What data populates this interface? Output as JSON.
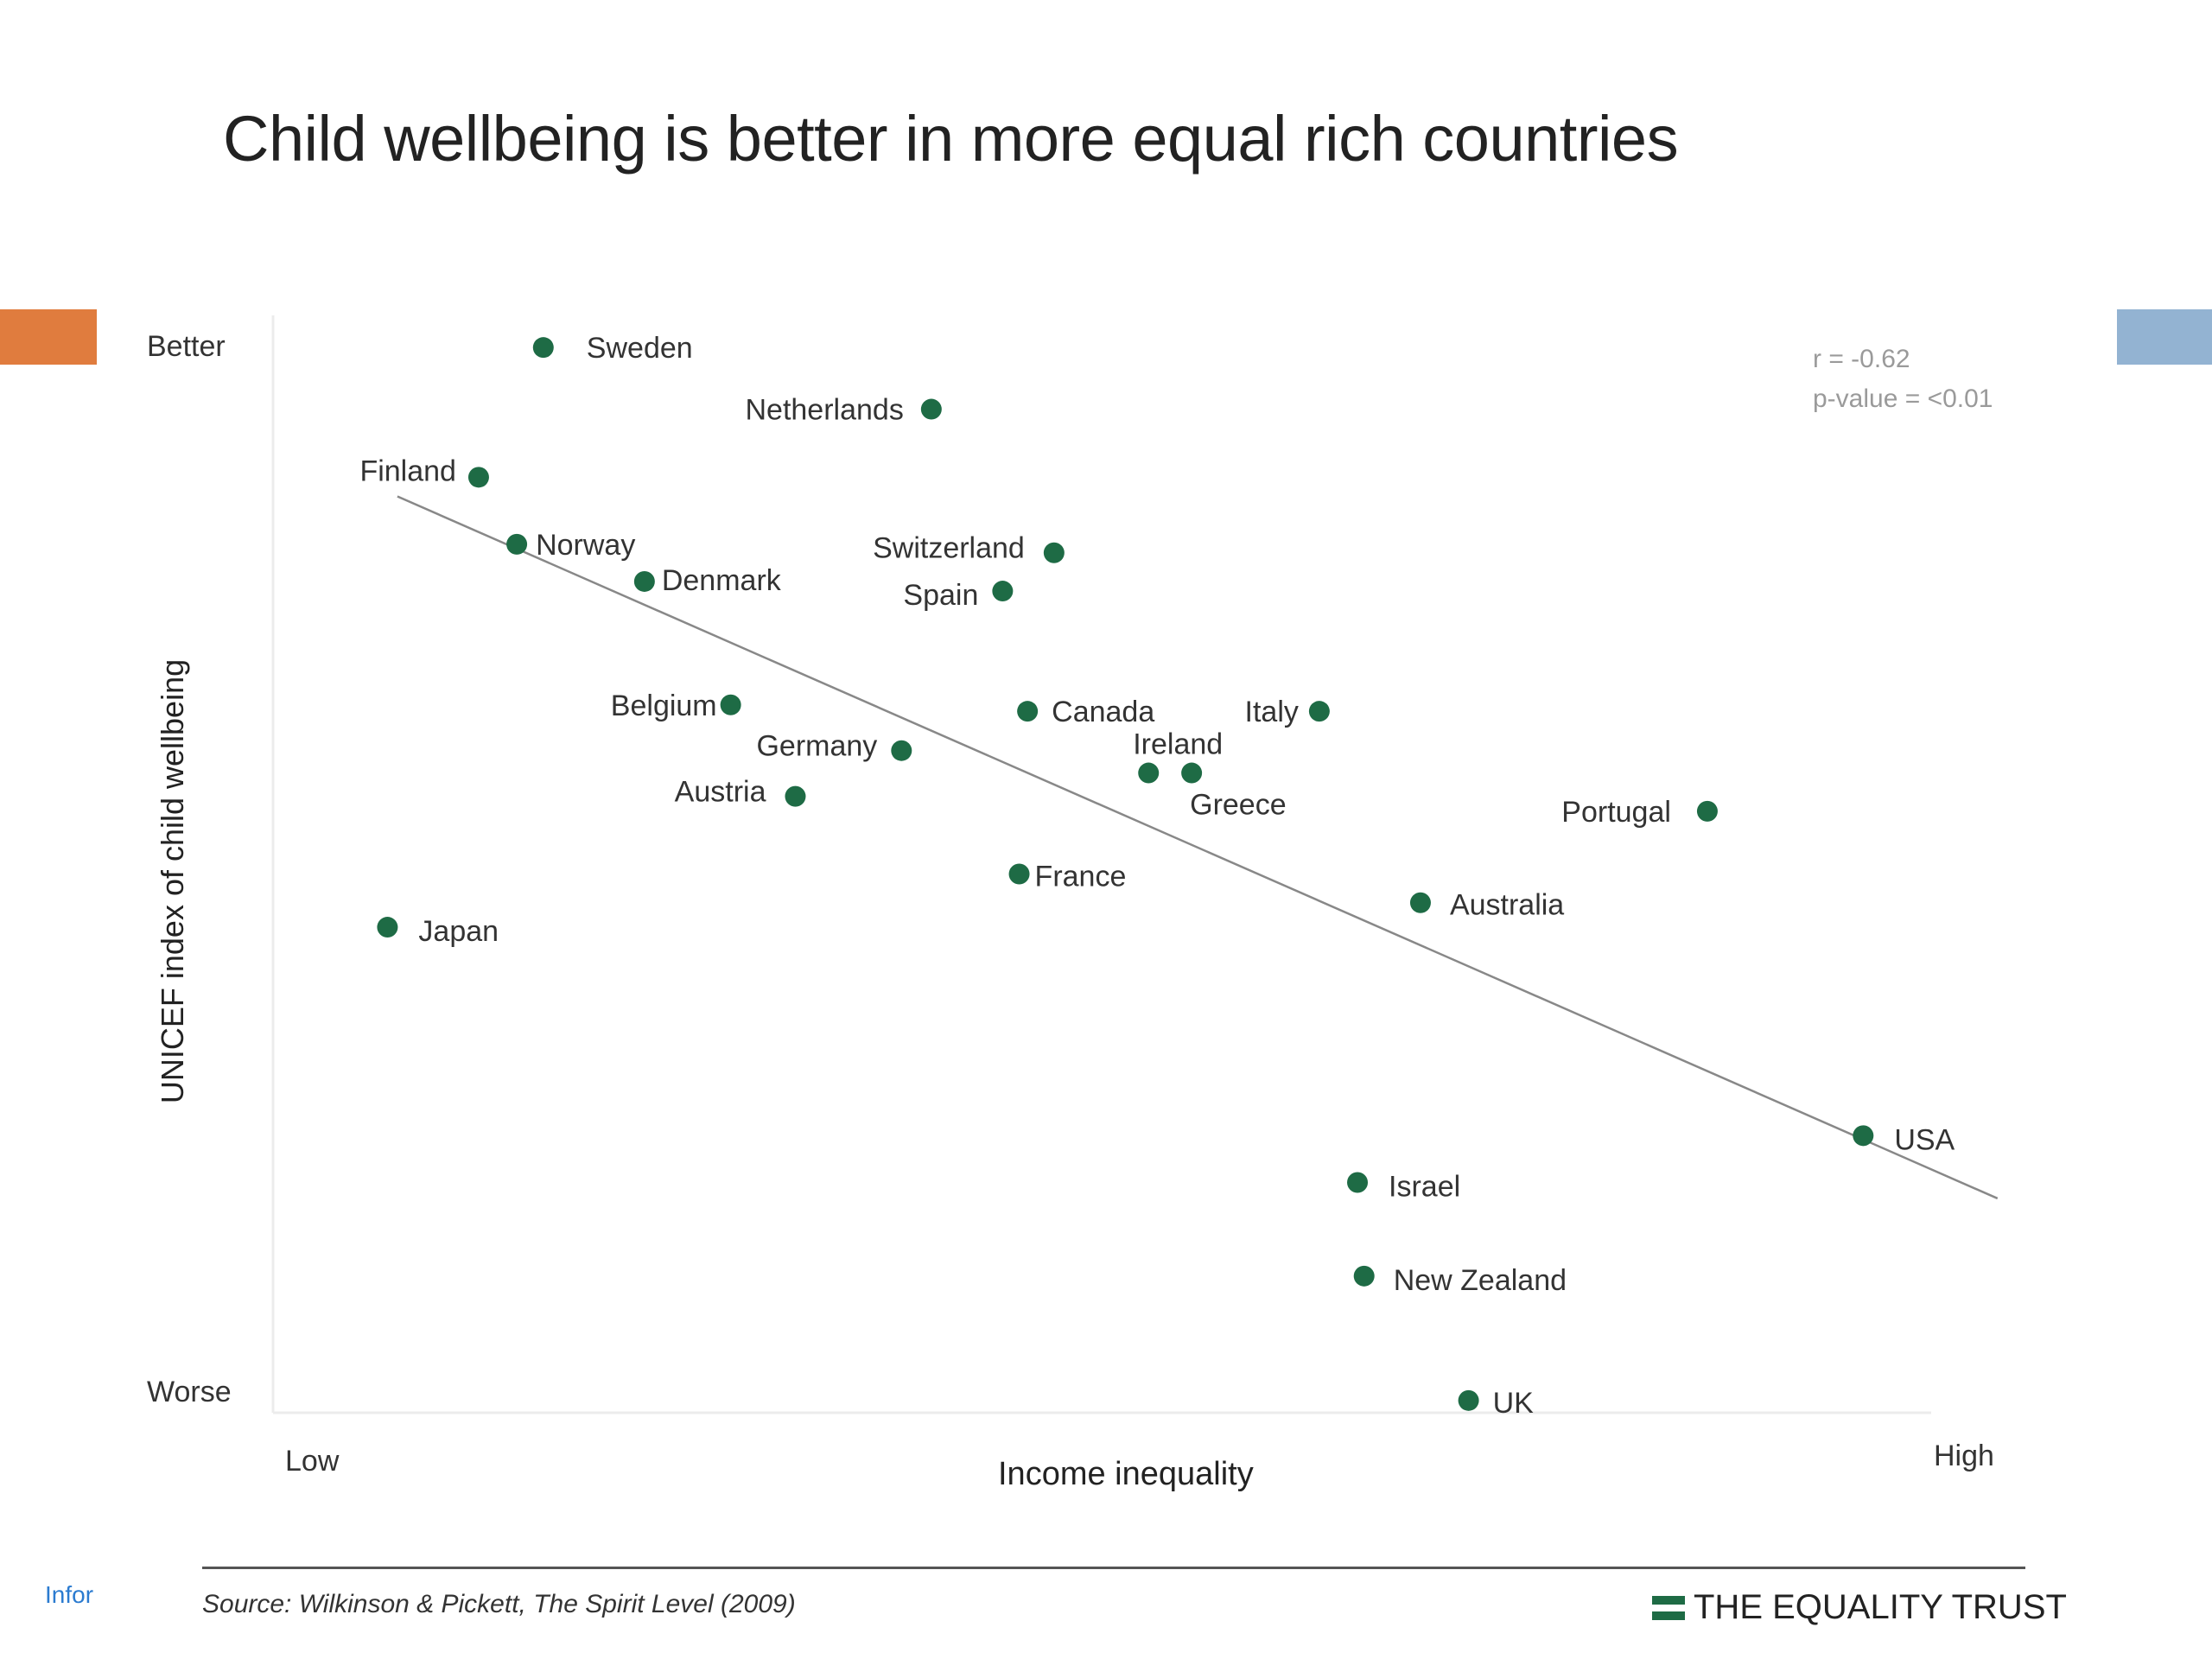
{
  "decor": {
    "left_tab_color": "#e07c3e",
    "right_tab_color": "#93b3d2",
    "point_color": "#1e6b45"
  },
  "footer": {
    "source": "Source: Wilkinson & Pickett, The Spirit Level (2009)",
    "brand": "THE EQUALITY TRUST",
    "left_text": "Infor"
  },
  "chart_data": {
    "type": "scatter",
    "title": "Child wellbeing is better in more equal rich countries",
    "xlabel": "Income inequality",
    "ylabel": "UNICEF index of child wellbeing",
    "x_ends": {
      "low": "Low",
      "high": "High"
    },
    "y_ends": {
      "high": "Better",
      "low": "Worse"
    },
    "xlim": [
      0,
      10
    ],
    "ylim": [
      0,
      10
    ],
    "stats": {
      "r": "r = -0.62",
      "p": "p-value = <0.01"
    },
    "trend_line": {
      "x": [
        0.75,
        10.4
      ],
      "y": [
        8.55,
        1.95
      ]
    },
    "points": [
      {
        "label": "Sweden",
        "x": 1.63,
        "y": 9.95
      },
      {
        "label": "Netherlands",
        "x": 3.97,
        "y": 9.37
      },
      {
        "label": "Finland",
        "x": 1.24,
        "y": 8.73
      },
      {
        "label": "Norway",
        "x": 1.47,
        "y": 8.1
      },
      {
        "label": "Denmark",
        "x": 2.24,
        "y": 7.75
      },
      {
        "label": "Switzerland",
        "x": 4.71,
        "y": 8.02
      },
      {
        "label": "Spain",
        "x": 4.4,
        "y": 7.66
      },
      {
        "label": "Belgium",
        "x": 2.76,
        "y": 6.59
      },
      {
        "label": "Canada",
        "x": 4.55,
        "y": 6.53
      },
      {
        "label": "Italy",
        "x": 6.31,
        "y": 6.53
      },
      {
        "label": "Germany",
        "x": 3.79,
        "y": 6.16
      },
      {
        "label": "Austria",
        "x": 3.15,
        "y": 5.73
      },
      {
        "label": "Ireland",
        "x": 5.28,
        "y": 5.95
      },
      {
        "label": "Greece",
        "x": 5.54,
        "y": 5.95
      },
      {
        "label": "Portugal",
        "x": 8.65,
        "y": 5.59
      },
      {
        "label": "France",
        "x": 4.5,
        "y": 5.0
      },
      {
        "label": "Australia",
        "x": 6.92,
        "y": 4.73
      },
      {
        "label": "Japan",
        "x": 0.69,
        "y": 4.5
      },
      {
        "label": "USA",
        "x": 9.59,
        "y": 2.54
      },
      {
        "label": "Israel",
        "x": 6.54,
        "y": 2.1
      },
      {
        "label": "New Zealand",
        "x": 6.58,
        "y": 1.22
      },
      {
        "label": "UK",
        "x": 7.21,
        "y": 0.05
      }
    ]
  }
}
